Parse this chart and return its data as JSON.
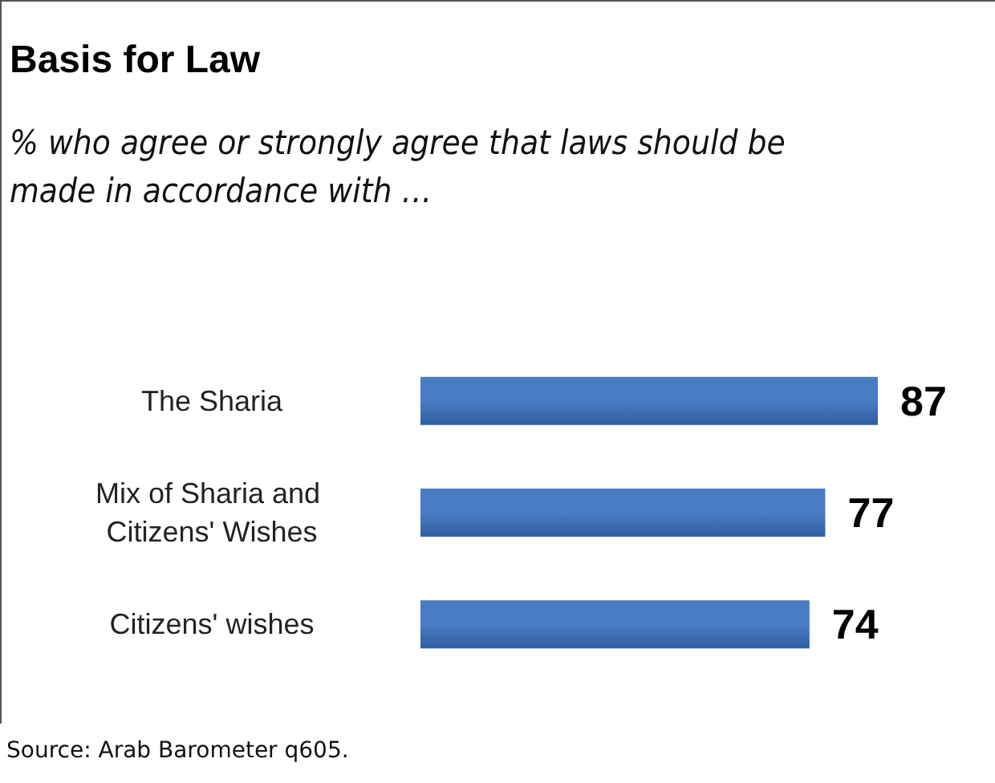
{
  "chart_data": {
    "type": "bar",
    "orientation": "horizontal",
    "title": "Basis for Law",
    "subtitle": "% who  agree or strongly agree that laws should be made in accordance with …",
    "categories": [
      "The Sharia",
      "Mix of Sharia and Citizens' Wishes",
      "Citizens' wishes"
    ],
    "values": [
      87,
      77,
      74
    ],
    "color": "#4a7cc4",
    "data_labels": true,
    "annotations": [
      "Source: Arab Barometer q605."
    ]
  }
}
